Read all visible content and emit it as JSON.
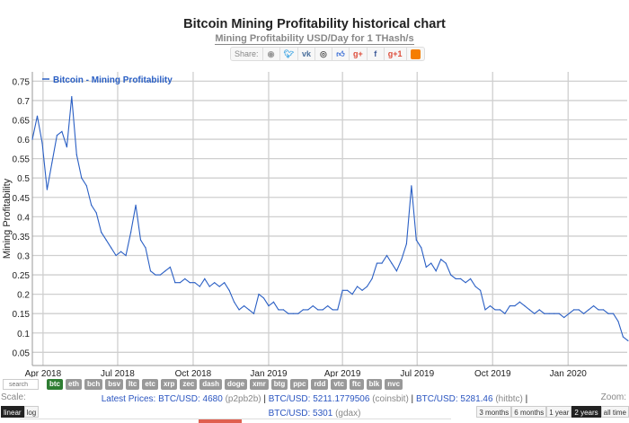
{
  "header": {
    "title": "Bitcoin Mining Profitability historical chart",
    "subtitle": "Mining Profitability USD/Day for 1 THash/s"
  },
  "share": {
    "label": "Share:",
    "icons": [
      "reddit-icon",
      "twitter-icon",
      "vk-icon",
      "weibo-icon",
      "like-icon",
      "google-plus-icon",
      "facebook-icon",
      "google-plus-one-icon",
      "blogger-icon"
    ]
  },
  "chart_data": {
    "type": "line",
    "title": "Bitcoin Mining Profitability historical chart",
    "ylabel": "Mining Profitability",
    "xlabel": "",
    "legend": {
      "label": "Bitcoin - Mining Profitability",
      "placement": "top-left"
    },
    "series_color": "#2a5fc4",
    "start_date": "2018-03-19",
    "step_days": 6,
    "xlim_days": [
      0,
      725
    ],
    "ylim": [
      0.016,
      0.774
    ],
    "yticks": [
      0.05,
      0.1,
      0.15,
      0.2,
      0.25,
      0.3,
      0.35,
      0.4,
      0.45,
      0.5,
      0.55,
      0.6,
      0.65,
      0.7,
      0.75
    ],
    "ytick_labels": [
      "0.05",
      "0.1",
      "0.15",
      "0.2",
      "0.25",
      "0.3",
      "0.35",
      "0.4",
      "0.45",
      "0.5",
      "0.55",
      "0.6",
      "0.65",
      "0.7",
      "0.75"
    ],
    "xticks": [
      {
        "label": "Apr 2018",
        "day": 13
      },
      {
        "label": "Jul 2018",
        "day": 104
      },
      {
        "label": "Oct 2018",
        "day": 196
      },
      {
        "label": "Jan 2019",
        "day": 288
      },
      {
        "label": "Apr 2019",
        "day": 378
      },
      {
        "label": "Jul 2019",
        "day": 469
      },
      {
        "label": "Oct 2019",
        "day": 561
      },
      {
        "label": "Jan 2020",
        "day": 653
      }
    ],
    "values": [
      0.6,
      0.66,
      0.59,
      0.47,
      0.54,
      0.61,
      0.62,
      0.58,
      0.71,
      0.56,
      0.5,
      0.48,
      0.43,
      0.41,
      0.36,
      0.34,
      0.32,
      0.3,
      0.31,
      0.3,
      0.36,
      0.43,
      0.34,
      0.32,
      0.26,
      0.25,
      0.25,
      0.26,
      0.27,
      0.23,
      0.23,
      0.24,
      0.23,
      0.23,
      0.22,
      0.24,
      0.22,
      0.23,
      0.22,
      0.23,
      0.21,
      0.18,
      0.16,
      0.17,
      0.16,
      0.15,
      0.2,
      0.19,
      0.17,
      0.18,
      0.16,
      0.16,
      0.15,
      0.15,
      0.15,
      0.16,
      0.16,
      0.17,
      0.16,
      0.16,
      0.17,
      0.16,
      0.16,
      0.21,
      0.21,
      0.2,
      0.22,
      0.21,
      0.22,
      0.24,
      0.28,
      0.28,
      0.3,
      0.28,
      0.26,
      0.29,
      0.33,
      0.48,
      0.34,
      0.32,
      0.27,
      0.28,
      0.26,
      0.29,
      0.28,
      0.25,
      0.24,
      0.24,
      0.23,
      0.24,
      0.22,
      0.21,
      0.16,
      0.17,
      0.16,
      0.16,
      0.15,
      0.17,
      0.17,
      0.18,
      0.17,
      0.16,
      0.15,
      0.16,
      0.15,
      0.15,
      0.15,
      0.15,
      0.14,
      0.15,
      0.16,
      0.16,
      0.15,
      0.16,
      0.17,
      0.16,
      0.16,
      0.15,
      0.15,
      0.13,
      0.09,
      0.08
    ]
  },
  "coins": {
    "search_placeholder": "search",
    "items": [
      "btc",
      "eth",
      "bch",
      "bsv",
      "ltc",
      "etc",
      "xrp",
      "zec",
      "dash",
      "doge",
      "xmr",
      "btg",
      "ppc",
      "rdd",
      "vtc",
      "ftc",
      "blk",
      "nvc"
    ],
    "active": "btc"
  },
  "scale": {
    "label": "Scale:",
    "options": [
      "linear",
      "log"
    ],
    "active": "linear"
  },
  "prices": {
    "label": "Latest Prices:",
    "items": [
      {
        "pair": "BTC/USD: 4680",
        "exchange": "(p2pb2b)"
      },
      {
        "pair": "BTC/USD: 5211.1779506",
        "exchange": "(coinsbit)"
      },
      {
        "pair": "BTC/USD: 5281.46",
        "exchange": "(hitbtc)"
      },
      {
        "pair": "BTC/USD: 5301",
        "exchange": "(gdax)"
      }
    ]
  },
  "zoom": {
    "label": "Zoom:",
    "options": [
      "3 months",
      "6 months",
      "1 year",
      "2 years",
      "all time"
    ],
    "active": "2 years"
  }
}
